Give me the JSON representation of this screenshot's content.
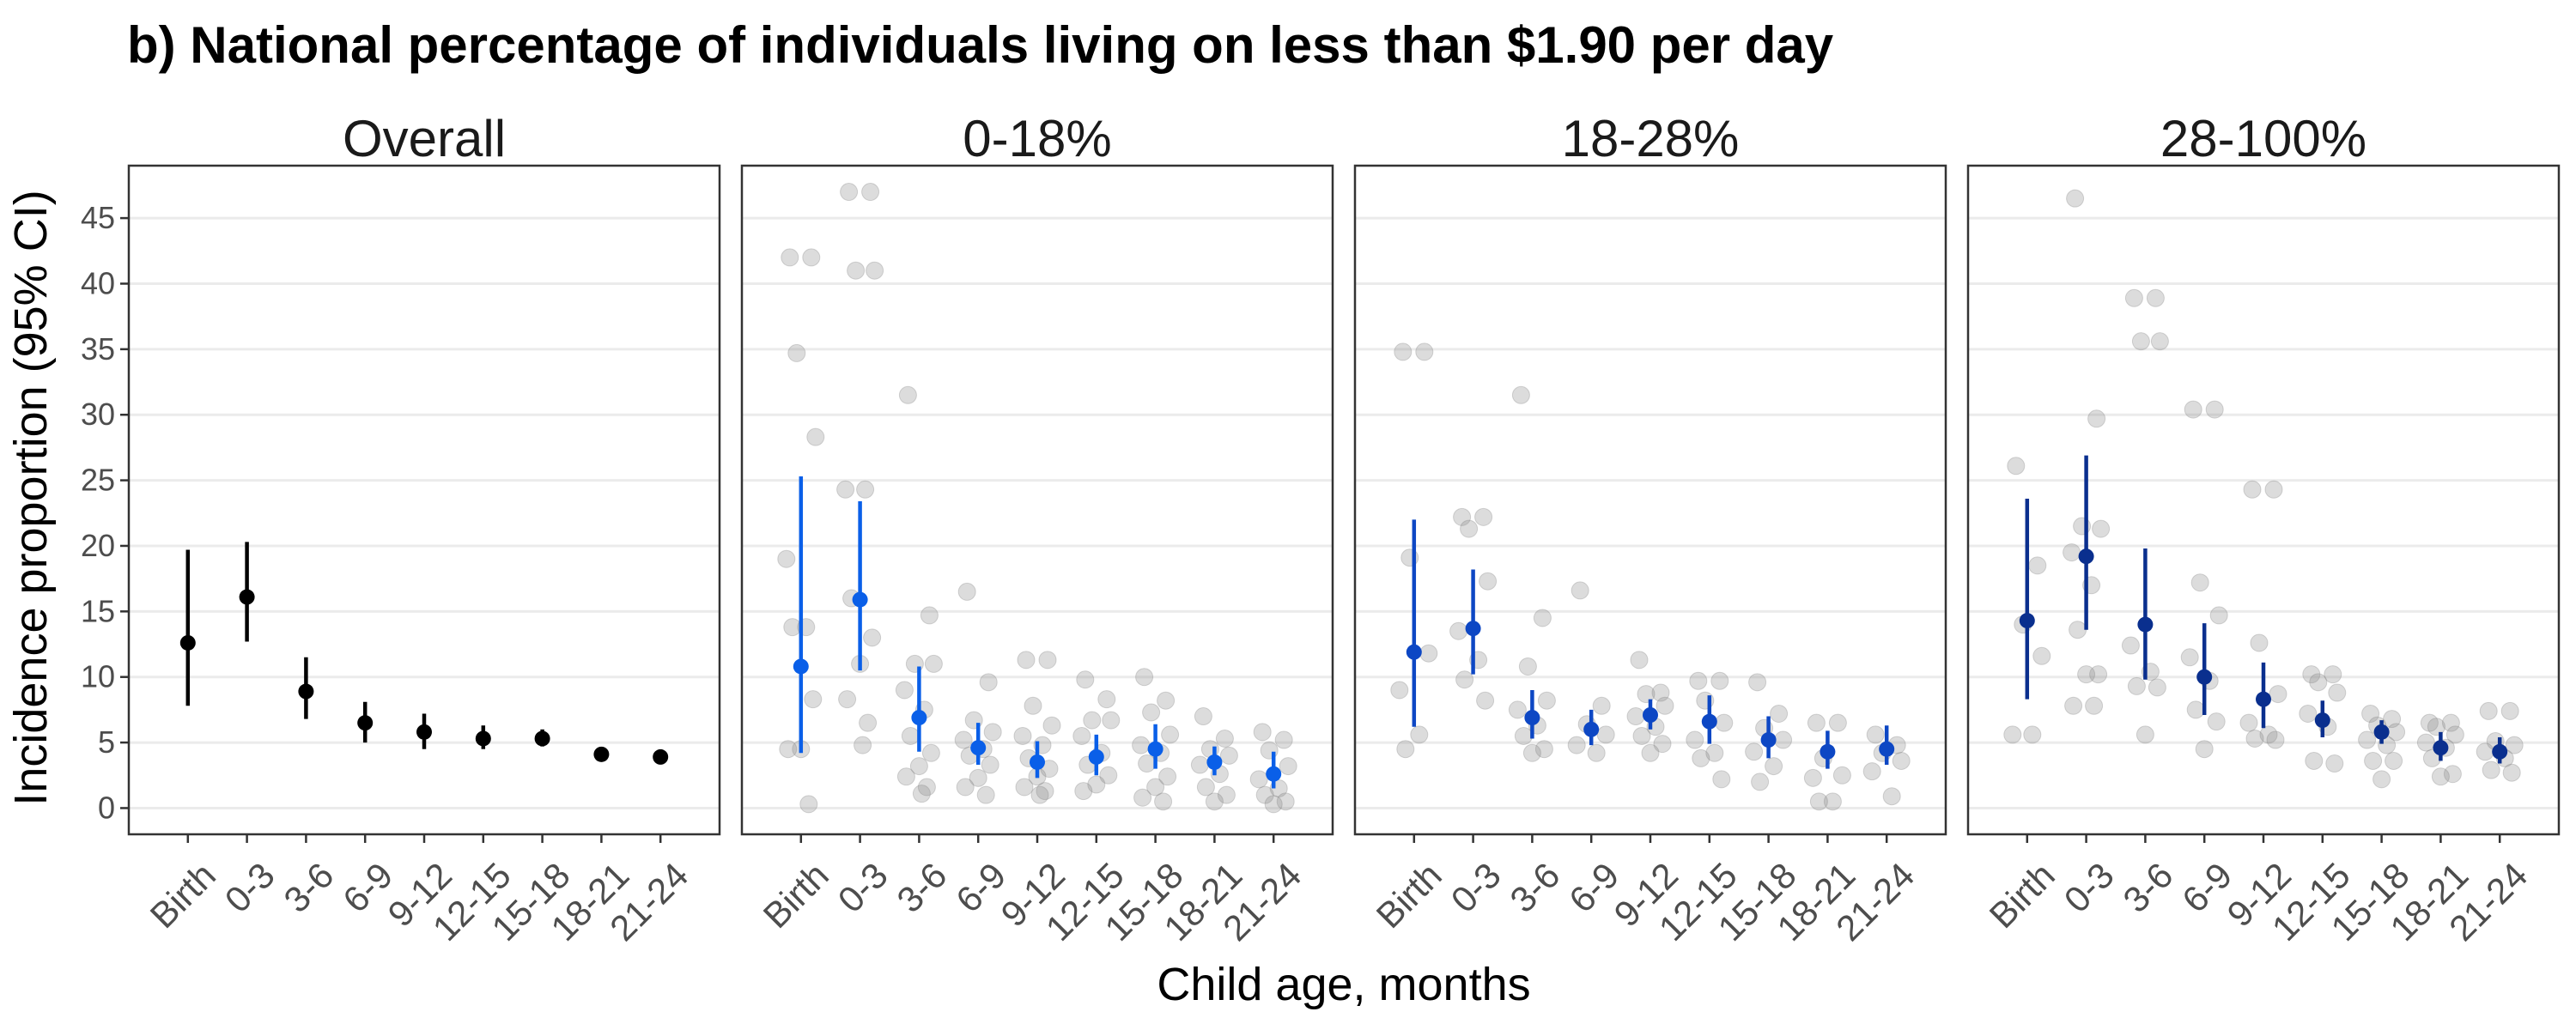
{
  "title": "b) National percentage of individuals living on less than $1.90 per day",
  "chart_data": {
    "type": "scatter",
    "title": "b) National percentage of individuals living on less than $1.90 per day",
    "xlabel": "Child age, months",
    "ylabel": "Incidence proportion (95% CI)",
    "categories": [
      "Birth",
      "0-3",
      "3-6",
      "6-9",
      "9-12",
      "12-15",
      "15-18",
      "18-21",
      "21-24"
    ],
    "ylim": [
      -2,
      49
    ],
    "yticks": [
      0,
      5,
      10,
      15,
      20,
      25,
      30,
      35,
      40,
      45
    ],
    "grid": true,
    "facets": [
      {
        "label": "Overall",
        "color": "#000000",
        "estimate": [
          12.6,
          16.1,
          8.9,
          6.5,
          5.8,
          5.3,
          5.3,
          4.1,
          3.9
        ],
        "ci_lower": [
          7.8,
          12.7,
          6.8,
          5.0,
          4.5,
          4.5,
          4.7,
          3.6,
          3.4
        ],
        "ci_upper": [
          19.7,
          20.3,
          11.5,
          8.1,
          7.2,
          6.3,
          6.0,
          4.6,
          4.4
        ],
        "studies": []
      },
      {
        "label": "0-18%",
        "color": "#0a5fe8",
        "estimate": [
          10.8,
          15.9,
          6.9,
          4.6,
          3.5,
          3.9,
          4.5,
          3.5,
          2.6
        ],
        "ci_lower": [
          4.2,
          10.5,
          4.3,
          3.3,
          2.3,
          2.5,
          3.0,
          2.5,
          1.5
        ],
        "ci_upper": [
          25.3,
          23.4,
          10.8,
          6.5,
          5.1,
          5.6,
          6.4,
          4.7,
          4.3
        ],
        "studies": [
          [
            42,
            42,
            34.7,
            28.3,
            19,
            13.8,
            13.8,
            8.3,
            4.5,
            4.5,
            0.3
          ],
          [
            47,
            47,
            41,
            41,
            24.3,
            24.3,
            16,
            13,
            11,
            8.3,
            6.5,
            4.8
          ],
          [
            31.5,
            14.7,
            11,
            11,
            9,
            7.5,
            5.5,
            4.2,
            3.2,
            2.4,
            1.6,
            1.1
          ],
          [
            16.5,
            9.6,
            6.7,
            5.8,
            5.2,
            4.5,
            4,
            3.3,
            2.3,
            1.6,
            1
          ],
          [
            11.3,
            11.3,
            7.8,
            6.3,
            5.5,
            4.8,
            3.8,
            3,
            2.4,
            1.6,
            1.3,
            1
          ],
          [
            9.8,
            8.3,
            6.7,
            6.7,
            5.5,
            4.2,
            3.3,
            2.5,
            1.8,
            1.3
          ],
          [
            10,
            8.2,
            7.3,
            5.6,
            4.8,
            4.2,
            3.4,
            2.4,
            1.6,
            0.8,
            0.5
          ],
          [
            7,
            5.3,
            4.5,
            4,
            3.3,
            2.6,
            1.6,
            1,
            0.5
          ],
          [
            5.8,
            5.2,
            4.4,
            3.2,
            2.2,
            1.5,
            1,
            0.5,
            0.3
          ]
        ]
      },
      {
        "label": "18-28%",
        "color": "#0d47c4",
        "estimate": [
          11.9,
          13.7,
          6.9,
          6.0,
          7.1,
          6.6,
          5.2,
          4.3,
          4.5
        ],
        "ci_lower": [
          6.2,
          10.2,
          5.3,
          4.8,
          6.0,
          4.9,
          3.8,
          3.0,
          3.3
        ],
        "ci_upper": [
          22.0,
          18.2,
          9.0,
          7.5,
          8.3,
          8.6,
          7.0,
          5.9,
          6.3
        ],
        "studies": [
          [
            34.8,
            34.8,
            19.1,
            11.8,
            9,
            5.6,
            4.5
          ],
          [
            22.2,
            22.2,
            21.3,
            17.3,
            13.5,
            11.3,
            9.8,
            8.2
          ],
          [
            31.5,
            14.5,
            10.8,
            8.2,
            7.5,
            6.3,
            5.5,
            4.5,
            4.2
          ],
          [
            16.6,
            7.8,
            6.4,
            5.6,
            4.8,
            4.2
          ],
          [
            11.3,
            8.8,
            8.7,
            7.8,
            7,
            6.2,
            5.5,
            4.9,
            4.2
          ],
          [
            9.7,
            9.7,
            8.2,
            6.5,
            5.2,
            4.2,
            3.8,
            2.2
          ],
          [
            9.6,
            7.2,
            6.1,
            5.2,
            4.3,
            3.2,
            2
          ],
          [
            6.5,
            6.5,
            3.8,
            2.5,
            2.3,
            0.5,
            0.5
          ],
          [
            5.6,
            4.8,
            4.2,
            3.6,
            2.8,
            0.9
          ]
        ]
      },
      {
        "label": "28-100%",
        "color": "#0a2f8e",
        "estimate": [
          14.3,
          19.2,
          14.0,
          10.0,
          8.3,
          6.7,
          5.8,
          4.6,
          4.3
        ],
        "ci_lower": [
          8.3,
          13.6,
          9.8,
          7.1,
          6.1,
          5.4,
          4.9,
          3.6,
          3.4
        ],
        "ci_upper": [
          23.6,
          26.9,
          19.8,
          14.1,
          11.1,
          8.2,
          6.7,
          5.8,
          5.4
        ],
        "studies": [
          [
            26.1,
            18.5,
            14,
            11.6,
            5.6,
            5.6
          ],
          [
            46.5,
            29.7,
            21.5,
            21.3,
            19.5,
            17,
            13.6,
            10.2,
            10.2,
            7.8,
            7.8
          ],
          [
            38.9,
            38.9,
            35.6,
            35.6,
            12.4,
            10.4,
            9.3,
            9.2,
            5.6
          ],
          [
            30.4,
            30.4,
            17.2,
            14.7,
            11.5,
            9.7,
            7.5,
            6.6,
            4.5
          ],
          [
            24.3,
            24.3,
            12.6,
            8.7,
            6.5,
            5.6,
            5.3,
            5.2
          ],
          [
            10.2,
            10.2,
            9.6,
            8.8,
            7.2,
            6.2,
            3.6,
            3.4
          ],
          [
            7.2,
            6.8,
            6.3,
            5.8,
            5.2,
            4.8,
            3.6,
            3.6,
            2.2
          ],
          [
            6.5,
            6.5,
            6.2,
            5.6,
            5,
            4.6,
            3.8,
            2.6,
            2.4
          ],
          [
            7.4,
            7.4,
            5.1,
            4.8,
            4.3,
            3.8,
            2.9,
            2.7
          ]
        ]
      }
    ]
  }
}
